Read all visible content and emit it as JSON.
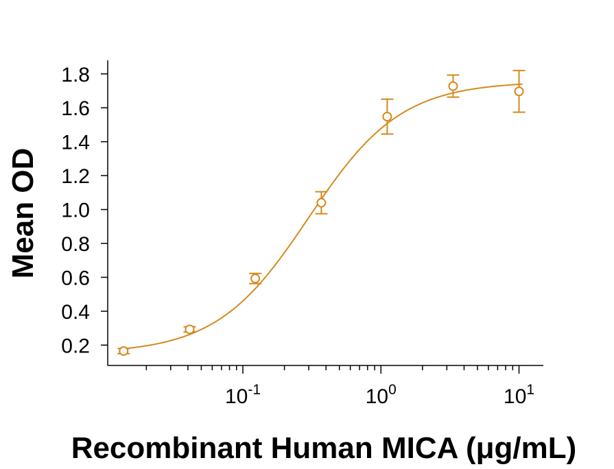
{
  "chart_data": {
    "type": "scatter",
    "title": "",
    "xlabel": "Recombinant Human MICA (μg/mL)",
    "ylabel": "Mean OD",
    "x_scale": "log",
    "xlim": [
      0.0105,
      15
    ],
    "ylim": [
      0.08,
      1.88
    ],
    "y_ticks": [
      0.2,
      0.4,
      0.6,
      0.8,
      1.0,
      1.2,
      1.4,
      1.6,
      1.8
    ],
    "y_tick_labels": [
      "0.2",
      "0.4",
      "0.6",
      "0.8",
      "1.0",
      "1.2",
      "1.4",
      "1.6",
      "1.8"
    ],
    "x_ticks": [
      {
        "value": 0.1,
        "base": "10",
        "exp": "-1"
      },
      {
        "value": 1,
        "base": "10",
        "exp": "0"
      },
      {
        "value": 10,
        "base": "10",
        "exp": "1"
      }
    ],
    "grid": false,
    "legend": "none",
    "color": "#d4891c",
    "series": [
      {
        "points": [
          {
            "x": 0.0137,
            "y": 0.165,
            "err": 0.015
          },
          {
            "x": 0.0412,
            "y": 0.293,
            "err": 0.015
          },
          {
            "x": 0.123,
            "y": 0.593,
            "err": 0.03
          },
          {
            "x": 0.37,
            "y": 1.04,
            "err": 0.065
          },
          {
            "x": 1.11,
            "y": 1.548,
            "err": 0.103
          },
          {
            "x": 3.33,
            "y": 1.728,
            "err": 0.065
          },
          {
            "x": 10,
            "y": 1.697,
            "err": 0.123
          }
        ],
        "fit": {
          "model": "4PL",
          "bottom": 0.15,
          "top": 1.755,
          "ec50": 0.3,
          "hill": 1.3
        }
      }
    ]
  }
}
